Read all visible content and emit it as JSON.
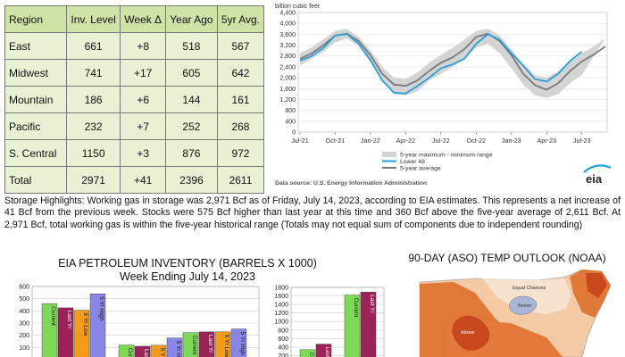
{
  "storage_table": {
    "headers": [
      "Region",
      "Inv. Level",
      "Week Δ",
      "Year Ago",
      "5yr Avg."
    ],
    "rows": [
      {
        "region": "East",
        "inv": "661",
        "week": "+8",
        "year_ago": "518",
        "avg5": "567"
      },
      {
        "region": "Midwest",
        "inv": "741",
        "week": "+17",
        "year_ago": "605",
        "avg5": "642"
      },
      {
        "region": "Mountain",
        "inv": "186",
        "week": "+6",
        "year_ago": "144",
        "avg5": "161"
      },
      {
        "region": "Pacific",
        "inv": "232",
        "week": "+7",
        "year_ago": "252",
        "avg5": "268"
      },
      {
        "region": "S. Central",
        "inv": "1150",
        "week": "+3",
        "year_ago": "876",
        "avg5": "972"
      },
      {
        "region": "Total",
        "inv": "2971",
        "week": "+41",
        "year_ago": "2396",
        "avg5": "2611"
      }
    ],
    "colors": {
      "header_bg": "#cfe3a6",
      "cell_bg": "#e8f1d4"
    }
  },
  "highlights": "Storage Highlights: Working gas in storage was 2,971 Bcf as of Friday, July 14, 2023, according to EIA estimates. This represents a net increase of 41 Bcf from the previous week. Stocks were 575 Bcf higher than last year at this time and 360 Bcf above the five-year average of 2,611 Bcf. At 2,971 Bcf, total working gas is within the five-year historical range (Totals may not equal sum of components due to independent rounding)",
  "petroleum": {
    "title_line1": "EIA PETROLEUM INVENTORY (BARRELS X 1000)",
    "title_line2": "Week Ending July 14, 2023"
  },
  "noaa": {
    "title": "90-DAY (ASO) TEMP OUTLOOK (NOAA)",
    "labels": {
      "equal_chances": "Equal Chances",
      "below": "Below",
      "above": "Above"
    }
  },
  "chart_data": [
    {
      "type": "line",
      "title": "",
      "ylabel": "billion cubic feet",
      "xlabel": "",
      "x_ticks": [
        "Jul-21",
        "Oct-21",
        "Jan-22",
        "Apr-22",
        "Jul-22",
        "Oct-22",
        "Jan-23",
        "Apr-23",
        "Jul-23"
      ],
      "y_ticks": [
        "0",
        "400",
        "800",
        "1,200",
        "1,600",
        "2,000",
        "2,400",
        "2,800",
        "3,200",
        "3,600",
        "4,000",
        "4,400"
      ],
      "ylim": [
        0,
        4400
      ],
      "grid": true,
      "legend_position": "bottom",
      "months": [
        "Jul-21",
        "Aug-21",
        "Sep-21",
        "Oct-21",
        "Nov-21",
        "Dec-21",
        "Jan-22",
        "Feb-22",
        "Mar-22",
        "Apr-22",
        "May-22",
        "Jun-22",
        "Jul-22",
        "Aug-22",
        "Sep-22",
        "Oct-22",
        "Nov-22",
        "Dec-22",
        "Jan-23",
        "Feb-23",
        "Mar-23",
        "Apr-23",
        "May-23",
        "Jun-23",
        "Jul-23",
        "Aug-23",
        "Sep-23"
      ],
      "series": [
        {
          "name": "5-year maximum - minimum range",
          "kind": "band",
          "color": "#d4d4d4",
          "upper": [
            2900,
            3120,
            3420,
            3720,
            3800,
            3500,
            3000,
            2400,
            2000,
            1950,
            2200,
            2550,
            2850,
            3100,
            3400,
            3720,
            3800,
            3550,
            3050,
            2500,
            2100,
            2000,
            2250,
            2600,
            2900,
            3150,
            3450
          ],
          "lower": [
            2450,
            2700,
            2950,
            3300,
            3450,
            3150,
            2550,
            1900,
            1400,
            1350,
            1500,
            1900,
            2150,
            2400,
            2700,
            3100,
            3250,
            2900,
            2350,
            1750,
            1350,
            1250,
            1400,
            1800,
            2100,
            null,
            null
          ]
        },
        {
          "name": "Lower 48",
          "kind": "line",
          "color": "#2a9fd8",
          "values": [
            2630,
            2800,
            3100,
            3550,
            3610,
            3250,
            2650,
            1900,
            1450,
            1420,
            1700,
            2000,
            2350,
            2490,
            2700,
            3250,
            3600,
            3400,
            2900,
            2450,
            1950,
            1860,
            2150,
            2620,
            2960,
            null,
            null
          ]
        },
        {
          "name": "5-year average",
          "kind": "line",
          "color": "#7a7a7a",
          "values": [
            2700,
            2900,
            3200,
            3550,
            3620,
            3350,
            2830,
            2150,
            1750,
            1700,
            1900,
            2250,
            2550,
            2750,
            3050,
            3500,
            3620,
            3350,
            2830,
            2150,
            1730,
            1560,
            1800,
            2250,
            2600,
            2850,
            3150
          ]
        }
      ],
      "source": "Data source:  U.S. Energy Information Administration",
      "logo": "eia"
    },
    {
      "type": "bar",
      "title": "",
      "ylim": [
        0,
        600
      ],
      "y_ticks": [
        "0",
        "100",
        "200",
        "300",
        "400",
        "500",
        "600"
      ],
      "groups": [
        {
          "bars": [
            {
              "label": "Current",
              "value": 460,
              "color": "#7ed957"
            },
            {
              "label": "Last Yr",
              "value": 425,
              "color": "#9c2358"
            },
            {
              "label": "5 Yr Low",
              "value": 405,
              "color": "#f39b1a"
            },
            {
              "label": "5 Yr High",
              "value": 540,
              "color": "#8a86e8"
            }
          ]
        },
        {
          "bars": [
            {
              "label": "Current",
              "value": 120,
              "color": "#7ed957"
            },
            {
              "label": "Last Yr",
              "value": 110,
              "color": "#9c2358"
            },
            {
              "label": "5 Yr Low",
              "value": 118,
              "color": "#f39b1a"
            },
            {
              "label": "5 Yr High",
              "value": 178,
              "color": "#8a86e8"
            }
          ]
        },
        {
          "bars": [
            {
              "label": "Current",
              "value": 222,
              "color": "#7ed957"
            },
            {
              "label": "Last Yr",
              "value": 228,
              "color": "#9c2358"
            },
            {
              "label": "5 Yr Low",
              "value": 228,
              "color": "#f39b1a"
            },
            {
              "label": "5 Yr High",
              "value": 252,
              "color": "#8a86e8"
            }
          ]
        }
      ]
    },
    {
      "type": "bar",
      "title": "",
      "ylim": [
        0,
        1800
      ],
      "y_ticks": [
        "200",
        "400",
        "600",
        "800",
        "1000",
        "1200",
        "1400",
        "1600",
        "1800"
      ],
      "groups": [
        {
          "bars": [
            {
              "label": "Current",
              "value": 340,
              "color": "#7ed957"
            },
            {
              "label": "Last Yr",
              "value": 470,
              "color": "#9c2358"
            }
          ]
        },
        {
          "bars": [
            {
              "label": "Current",
              "value": 1620,
              "color": "#7ed957"
            },
            {
              "label": "Last Yr",
              "value": 1690,
              "color": "#9c2358"
            }
          ]
        }
      ]
    }
  ]
}
